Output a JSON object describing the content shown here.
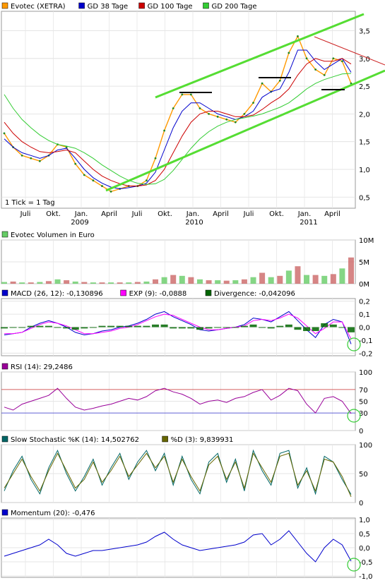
{
  "chart_data": [
    {
      "type": "line",
      "panel": "price",
      "legend": [
        {
          "label": "Evotec (XETRA)",
          "color": "#ff9900"
        },
        {
          "label": "GD 38 Tage",
          "color": "#0000cc"
        },
        {
          "label": "GD 100 Tage",
          "color": "#cc0000"
        },
        {
          "label": "GD 200 Tage",
          "color": "#33cc33"
        }
      ],
      "x_ticks": [
        "Juli",
        "Okt.",
        "Jan.",
        "April",
        "Juli",
        "Okt.",
        "Jan.",
        "April",
        "Juli",
        "Okt.",
        "Jan.",
        "April"
      ],
      "year_labels": [
        "2009",
        "2010",
        "2011"
      ],
      "y_ticks": [
        "0,5",
        "1,0",
        "1,5",
        "2,0",
        "2,5",
        "3,0",
        "3,5"
      ],
      "ylim": [
        0.3,
        3.85
      ],
      "annotation": "1 Tick = 1 Tag",
      "series": [
        {
          "name": "Evotec (XETRA)",
          "color": "#ff9900",
          "values": [
            1.65,
            1.4,
            1.25,
            1.2,
            1.15,
            1.25,
            1.45,
            1.4,
            1.1,
            0.9,
            0.8,
            0.7,
            0.6,
            0.65,
            0.7,
            0.7,
            0.8,
            1.2,
            1.7,
            2.1,
            2.35,
            2.35,
            2.1,
            2.0,
            1.95,
            1.9,
            1.85,
            2.0,
            2.2,
            2.55,
            2.4,
            2.6,
            3.1,
            3.4,
            3.0,
            2.8,
            2.7,
            3.0,
            2.95,
            2.55
          ]
        },
        {
          "name": "GD 38 Tage",
          "color": "#0000cc",
          "values": [
            1.55,
            1.4,
            1.3,
            1.25,
            1.2,
            1.25,
            1.35,
            1.38,
            1.2,
            1.0,
            0.85,
            0.75,
            0.68,
            0.65,
            0.67,
            0.7,
            0.75,
            0.95,
            1.35,
            1.75,
            2.05,
            2.2,
            2.2,
            2.1,
            2.0,
            1.95,
            1.9,
            1.95,
            2.05,
            2.3,
            2.4,
            2.45,
            2.75,
            3.15,
            3.15,
            2.95,
            2.8,
            2.9,
            3.0,
            2.75
          ]
        },
        {
          "name": "GD 100 Tage",
          "color": "#cc0000",
          "values": [
            1.85,
            1.65,
            1.5,
            1.4,
            1.32,
            1.3,
            1.32,
            1.35,
            1.3,
            1.15,
            1.0,
            0.88,
            0.8,
            0.74,
            0.7,
            0.7,
            0.72,
            0.8,
            1.0,
            1.3,
            1.6,
            1.85,
            2.0,
            2.05,
            2.05,
            2.0,
            1.95,
            1.95,
            1.98,
            2.08,
            2.2,
            2.3,
            2.45,
            2.7,
            2.9,
            3.0,
            2.95,
            2.95,
            3.0,
            2.9
          ]
        },
        {
          "name": "GD 200 Tage",
          "color": "#33cc33",
          "values": [
            2.35,
            2.1,
            1.9,
            1.75,
            1.62,
            1.52,
            1.45,
            1.42,
            1.38,
            1.3,
            1.2,
            1.08,
            0.98,
            0.88,
            0.8,
            0.75,
            0.73,
            0.74,
            0.82,
            0.98,
            1.18,
            1.38,
            1.55,
            1.68,
            1.78,
            1.85,
            1.9,
            1.93,
            1.96,
            2.0,
            2.06,
            2.12,
            2.2,
            2.32,
            2.45,
            2.55,
            2.62,
            2.67,
            2.72,
            2.73
          ]
        }
      ]
    },
    {
      "type": "bar",
      "panel": "volume",
      "legend": [
        {
          "label": "Evotec Volumen in Euro",
          "color": "#66cc66"
        }
      ],
      "y_ticks": [
        "0M",
        "5M",
        "10M"
      ],
      "ylim": [
        0,
        10
      ],
      "values": [
        0.4,
        0.5,
        0.3,
        0.3,
        0.4,
        0.6,
        1.0,
        0.8,
        0.5,
        0.4,
        0.3,
        0.3,
        0.3,
        0.3,
        0.3,
        0.4,
        0.5,
        1.0,
        1.5,
        2.0,
        1.8,
        1.5,
        1.0,
        0.8,
        0.8,
        0.7,
        0.8,
        1.0,
        1.5,
        2.5,
        1.5,
        1.8,
        3.0,
        4.0,
        2.0,
        2.0,
        1.8,
        2.2,
        3.5,
        6.0
      ]
    },
    {
      "type": "line",
      "panel": "macd",
      "legend": [
        {
          "label": "MACD (26, 12): -0,130896",
          "color": "#0000cc"
        },
        {
          "label": "EXP (9): -0,0888",
          "color": "#ff00ff"
        },
        {
          "label": "Divergence: -0,042096",
          "color": "#006600"
        }
      ],
      "y_ticks": [
        "0,2",
        "0,1",
        "0,0",
        "-0,1",
        "-0,2"
      ],
      "ylim": [
        -0.22,
        0.22
      ],
      "series": [
        {
          "name": "MACD (26, 12): -0,130896",
          "color": "#0000cc",
          "values": [
            -0.06,
            -0.05,
            -0.04,
            0.0,
            0.03,
            0.05,
            0.03,
            0.0,
            -0.04,
            -0.06,
            -0.05,
            -0.03,
            -0.02,
            0.0,
            0.01,
            0.03,
            0.06,
            0.1,
            0.12,
            0.08,
            0.05,
            0.02,
            -0.02,
            -0.03,
            -0.02,
            -0.01,
            0.0,
            0.02,
            0.07,
            0.06,
            0.04,
            0.08,
            0.12,
            0.05,
            -0.02,
            -0.08,
            0.02,
            0.06,
            0.04,
            -0.13
          ]
        },
        {
          "name": "EXP (9): -0,0888",
          "color": "#ff00ff",
          "values": [
            -0.05,
            -0.05,
            -0.04,
            -0.01,
            0.02,
            0.04,
            0.03,
            0.01,
            -0.02,
            -0.05,
            -0.05,
            -0.04,
            -0.03,
            -0.01,
            0.0,
            0.02,
            0.05,
            0.08,
            0.1,
            0.09,
            0.06,
            0.03,
            0.0,
            -0.02,
            -0.02,
            -0.01,
            0.0,
            0.01,
            0.05,
            0.06,
            0.05,
            0.07,
            0.1,
            0.07,
            0.01,
            -0.05,
            -0.01,
            0.04,
            0.04,
            -0.09
          ]
        },
        {
          "name": "Divergence: -0,042096",
          "color": "#006600",
          "values": [
            -0.01,
            0.0,
            0.0,
            0.01,
            0.01,
            0.01,
            0.0,
            -0.01,
            -0.02,
            -0.01,
            0.0,
            0.01,
            0.01,
            0.01,
            0.01,
            0.01,
            0.01,
            0.02,
            0.02,
            -0.01,
            -0.01,
            -0.01,
            -0.02,
            -0.01,
            0.0,
            0.0,
            0.0,
            0.01,
            0.02,
            0.0,
            -0.01,
            0.01,
            0.02,
            -0.02,
            -0.03,
            -0.03,
            0.03,
            0.02,
            0.0,
            -0.04
          ]
        }
      ]
    },
    {
      "type": "line",
      "panel": "rsi",
      "legend": [
        {
          "label": "RSI (14): 29,2486",
          "color": "#990099"
        }
      ],
      "y_ticks": [
        "100",
        "70",
        "50",
        "30",
        "0"
      ],
      "ylim": [
        0,
        100
      ],
      "levels": [
        70,
        30
      ],
      "series": [
        {
          "name": "RSI (14): 29,2486",
          "color": "#990099",
          "values": [
            40,
            35,
            45,
            50,
            55,
            60,
            72,
            55,
            40,
            35,
            38,
            42,
            45,
            50,
            55,
            52,
            58,
            68,
            72,
            66,
            62,
            55,
            45,
            50,
            52,
            48,
            55,
            58,
            65,
            70,
            52,
            60,
            72,
            68,
            45,
            30,
            55,
            58,
            50,
            29
          ]
        }
      ]
    },
    {
      "type": "line",
      "panel": "stochastic",
      "legend": [
        {
          "label": "Slow Stochastic %K (14): 14,502762",
          "color": "#006666"
        },
        {
          "label": "%D (3): 9,839931",
          "color": "#666600"
        }
      ],
      "y_ticks": [
        "100",
        "50",
        "0"
      ],
      "ylim": [
        0,
        100
      ],
      "series": [
        {
          "name": "Slow Stochastic %K (14): 14,502762",
          "color": "#006666",
          "values": [
            20,
            55,
            80,
            40,
            15,
            60,
            90,
            50,
            20,
            45,
            75,
            30,
            60,
            85,
            40,
            70,
            90,
            55,
            85,
            30,
            80,
            40,
            15,
            70,
            85,
            35,
            75,
            20,
            90,
            55,
            30,
            85,
            90,
            25,
            60,
            15,
            80,
            70,
            40,
            14
          ]
        },
        {
          "name": "%D (3): 9,839931",
          "color": "#666600",
          "values": [
            25,
            50,
            75,
            45,
            20,
            55,
            85,
            55,
            25,
            40,
            70,
            35,
            55,
            80,
            45,
            65,
            85,
            60,
            80,
            35,
            75,
            45,
            20,
            65,
            80,
            40,
            70,
            25,
            85,
            60,
            35,
            80,
            85,
            30,
            55,
            20,
            75,
            70,
            45,
            10
          ]
        }
      ]
    },
    {
      "type": "line",
      "panel": "momentum",
      "legend": [
        {
          "label": "Momentum (20): -0,476",
          "color": "#0000cc"
        }
      ],
      "y_ticks": [
        "1,0",
        "0,5",
        "0,0",
        "-0,5",
        "-1,0"
      ],
      "ylim": [
        -1.05,
        1.05
      ],
      "series": [
        {
          "name": "Momentum (20): -0,476",
          "color": "#0000cc",
          "values": [
            -0.3,
            -0.2,
            -0.1,
            0.0,
            0.1,
            0.3,
            0.1,
            -0.2,
            -0.3,
            -0.2,
            -0.1,
            -0.1,
            -0.05,
            0.0,
            0.05,
            0.1,
            0.2,
            0.4,
            0.55,
            0.3,
            0.1,
            0.0,
            -0.1,
            -0.05,
            0.0,
            0.05,
            0.1,
            0.2,
            0.45,
            0.5,
            0.1,
            0.3,
            0.6,
            0.2,
            -0.2,
            -0.5,
            0.0,
            0.3,
            0.1,
            -0.476
          ]
        }
      ]
    }
  ]
}
